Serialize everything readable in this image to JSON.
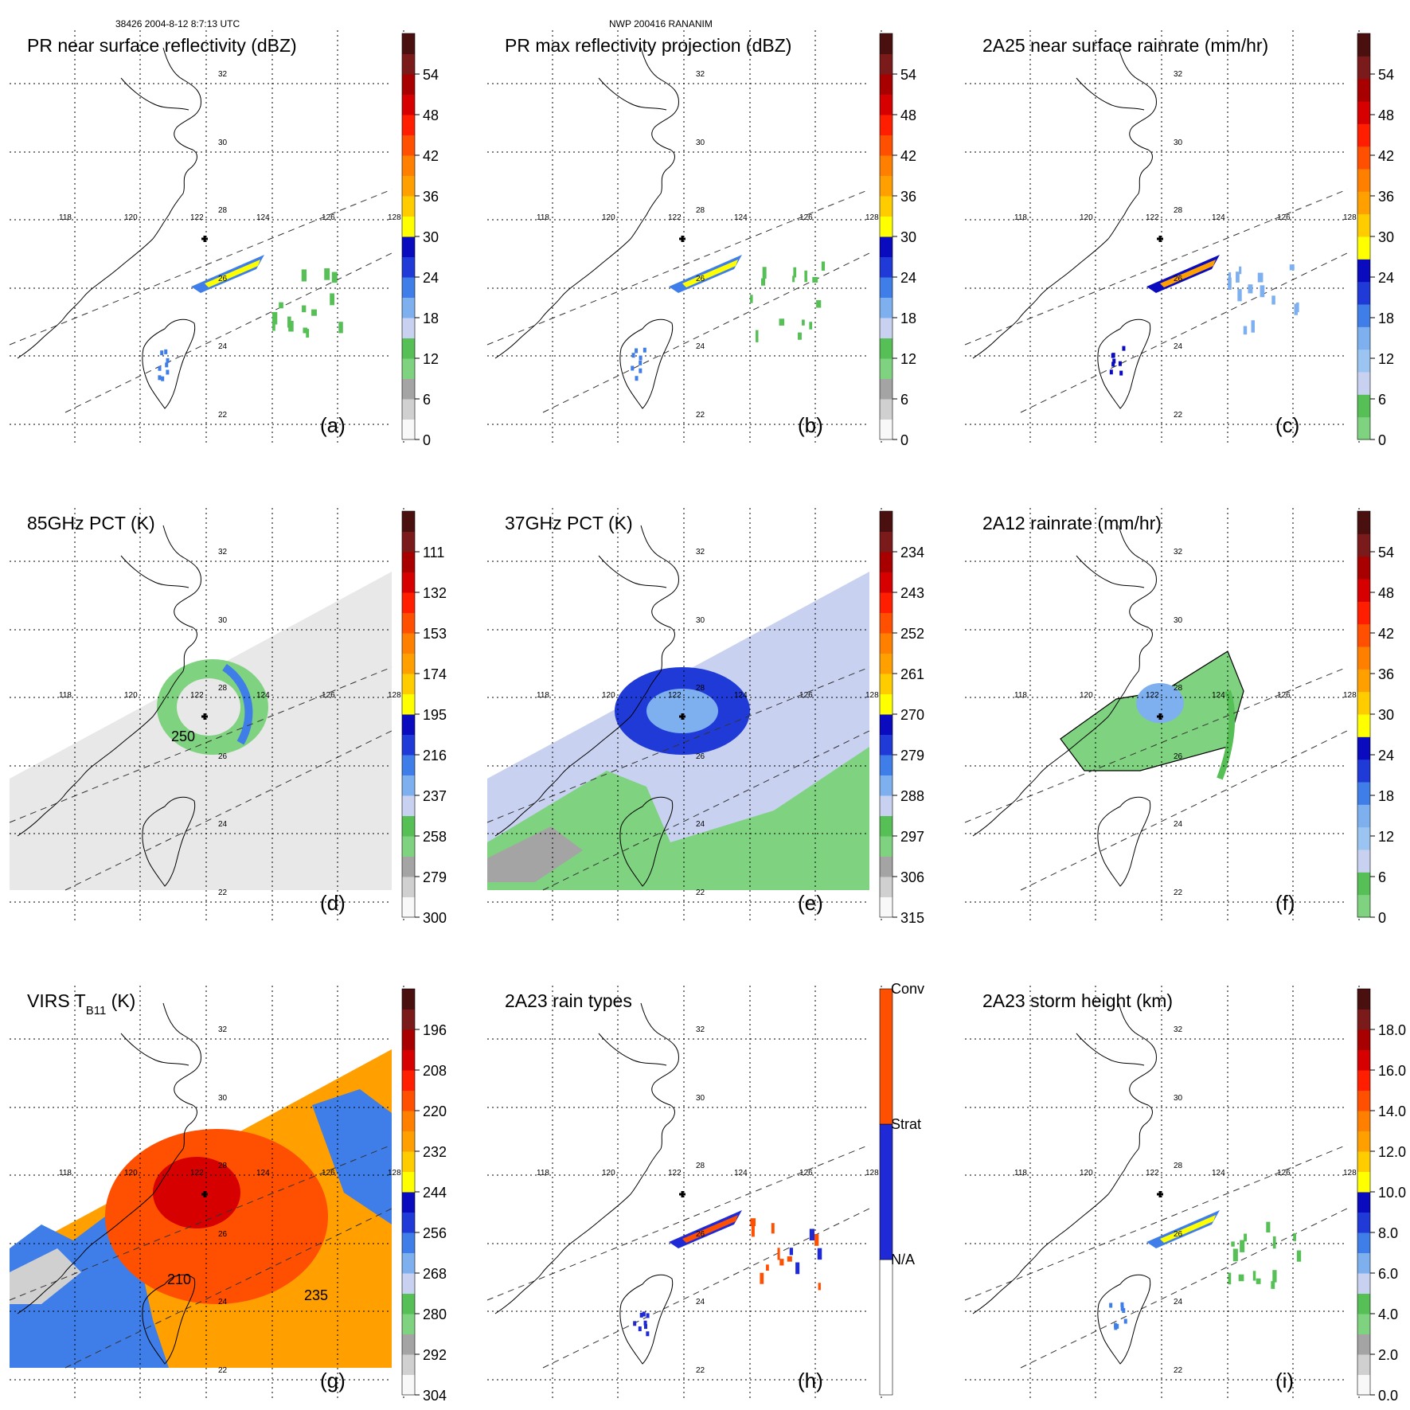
{
  "header": {
    "orbit_time": "38426 2004-8-12 8:7:13 UTC",
    "storm_id": "NWP 200416 RANANIM"
  },
  "latitude_labels": [
    "32",
    "30",
    "28",
    "26",
    "24",
    "22"
  ],
  "longitude_labels": [
    "118",
    "120",
    "122",
    "124",
    "126",
    "128"
  ],
  "chart_data": [
    {
      "type": "heatmap",
      "panel": "a",
      "title": "PR near surface reflectivity (dBZ)",
      "colorbar_ticks": [
        "0",
        "6",
        "12",
        "18",
        "24",
        "30",
        "36",
        "42",
        "48",
        "54"
      ],
      "palette": [
        "#f8f8f8",
        "#d0d0d0",
        "#a4a4a4",
        "#7fd27f",
        "#56bf56",
        "#c8d2f0",
        "#7eb0f0",
        "#3f7ee8",
        "#1f3ad6",
        "#0a0abf",
        "#ffff00",
        "#ffcc00",
        "#ff9f00",
        "#ff7f00",
        "#ff4f00",
        "#ff1f00",
        "#d60000",
        "#a80000",
        "#7a1a1a",
        "#4a1010"
      ],
      "coverage": "narrow PR swath"
    },
    {
      "type": "heatmap",
      "panel": "b",
      "title": "PR max reflectivity projection (dBZ)",
      "colorbar_ticks": [
        "0",
        "6",
        "12",
        "18",
        "24",
        "30",
        "36",
        "42",
        "48",
        "54"
      ],
      "palette": [
        "#f8f8f8",
        "#d0d0d0",
        "#a4a4a4",
        "#7fd27f",
        "#56bf56",
        "#c8d2f0",
        "#7eb0f0",
        "#3f7ee8",
        "#1f3ad6",
        "#0a0abf",
        "#ffff00",
        "#ffcc00",
        "#ff9f00",
        "#ff7f00",
        "#ff4f00",
        "#ff1f00",
        "#d60000",
        "#a80000",
        "#7a1a1a",
        "#4a1010"
      ],
      "coverage": "narrow PR swath"
    },
    {
      "type": "heatmap",
      "panel": "c",
      "title": "2A25 near surface rainrate (mm/hr)",
      "colorbar_ticks": [
        "0",
        "6",
        "12",
        "18",
        "24",
        "30",
        "36",
        "42",
        "48",
        "54"
      ],
      "palette": [
        "#7fd27f",
        "#56bf56",
        "#c8d2f0",
        "#9cc4f2",
        "#7eb0f0",
        "#3f7ee8",
        "#1f3ad6",
        "#0a0abf",
        "#ffff00",
        "#ffcc00",
        "#ff9f00",
        "#ff7f00",
        "#ff4f00",
        "#ff1f00",
        "#d60000",
        "#a80000",
        "#7a1a1a",
        "#4a1010"
      ],
      "coverage": "narrow PR swath"
    },
    {
      "type": "heatmap",
      "panel": "d",
      "title": "85GHz PCT (K)",
      "colorbar_ticks": [
        "300",
        "279",
        "258",
        "237",
        "216",
        "195",
        "174",
        "153",
        "132",
        "111"
      ],
      "palette": [
        "#f8f8f8",
        "#d0d0d0",
        "#a4a4a4",
        "#7fd27f",
        "#56bf56",
        "#c8d2f0",
        "#7eb0f0",
        "#3f7ee8",
        "#1f3ad6",
        "#0a0abf",
        "#ffff00",
        "#ffcc00",
        "#ff9f00",
        "#ff7f00",
        "#ff4f00",
        "#ff1f00",
        "#d60000",
        "#a80000",
        "#7a1a1a",
        "#4a1010"
      ],
      "contour_label": "250",
      "coverage": "wide TMI swath"
    },
    {
      "type": "heatmap",
      "panel": "e",
      "title": "37GHz PCT (K)",
      "colorbar_ticks": [
        "315",
        "306",
        "297",
        "288",
        "279",
        "270",
        "261",
        "252",
        "243",
        "234"
      ],
      "palette": [
        "#f8f8f8",
        "#d0d0d0",
        "#a4a4a4",
        "#7fd27f",
        "#56bf56",
        "#c8d2f0",
        "#7eb0f0",
        "#3f7ee8",
        "#1f3ad6",
        "#0a0abf",
        "#ffff00",
        "#ffcc00",
        "#ff9f00",
        "#ff7f00",
        "#ff4f00",
        "#ff1f00",
        "#d60000",
        "#a80000",
        "#7a1a1a",
        "#4a1010"
      ],
      "coverage": "wide TMI swath"
    },
    {
      "type": "heatmap",
      "panel": "f",
      "title": "2A12 rainrate (mm/hr)",
      "colorbar_ticks": [
        "0",
        "6",
        "12",
        "18",
        "24",
        "30",
        "36",
        "42",
        "48",
        "54"
      ],
      "palette": [
        "#7fd27f",
        "#56bf56",
        "#c8d2f0",
        "#9cc4f2",
        "#7eb0f0",
        "#3f7ee8",
        "#1f3ad6",
        "#0a0abf",
        "#ffff00",
        "#ffcc00",
        "#ff9f00",
        "#ff7f00",
        "#ff4f00",
        "#ff1f00",
        "#d60000",
        "#a80000",
        "#7a1a1a",
        "#4a1010"
      ],
      "coverage": "TMI rain area"
    },
    {
      "type": "heatmap",
      "panel": "g",
      "title": "VIRS T",
      "title_subscript": "B11",
      "title_unit": " (K)",
      "colorbar_ticks": [
        "304",
        "292",
        "280",
        "268",
        "256",
        "244",
        "232",
        "220",
        "208",
        "196"
      ],
      "palette": [
        "#f8f8f8",
        "#d0d0d0",
        "#a4a4a4",
        "#7fd27f",
        "#56bf56",
        "#c8d2f0",
        "#7eb0f0",
        "#3f7ee8",
        "#1f3ad6",
        "#0a0abf",
        "#ffff00",
        "#ffcc00",
        "#ff9f00",
        "#ff7f00",
        "#ff4f00",
        "#ff1f00",
        "#d60000",
        "#a80000",
        "#7a1a1a",
        "#4a1010"
      ],
      "contour_labels": [
        "210",
        "235"
      ],
      "coverage": "wide VIRS swath"
    },
    {
      "type": "heatmap",
      "panel": "h",
      "title": "2A23 rain types",
      "colorbar_categories": [
        "N/A",
        "Strat",
        "Conv"
      ],
      "category_colors": [
        "#ffffff",
        "#1f2ad6",
        "#ff4f00"
      ],
      "coverage": "narrow PR swath"
    },
    {
      "type": "heatmap",
      "panel": "i",
      "title": "2A23 storm height (km)",
      "colorbar_ticks": [
        "0.0",
        "2.0",
        "4.0",
        "6.0",
        "8.0",
        "10.0",
        "12.0",
        "14.0",
        "16.0",
        "18.0"
      ],
      "palette": [
        "#f8f8f8",
        "#d0d0d0",
        "#a4a4a4",
        "#7fd27f",
        "#56bf56",
        "#c8d2f0",
        "#7eb0f0",
        "#3f7ee8",
        "#1f3ad6",
        "#0a0abf",
        "#ffff00",
        "#ffcc00",
        "#ff9f00",
        "#ff7f00",
        "#ff4f00",
        "#ff1f00",
        "#d60000",
        "#a80000",
        "#7a1a1a",
        "#4a1010"
      ],
      "coverage": "narrow PR swath"
    }
  ]
}
